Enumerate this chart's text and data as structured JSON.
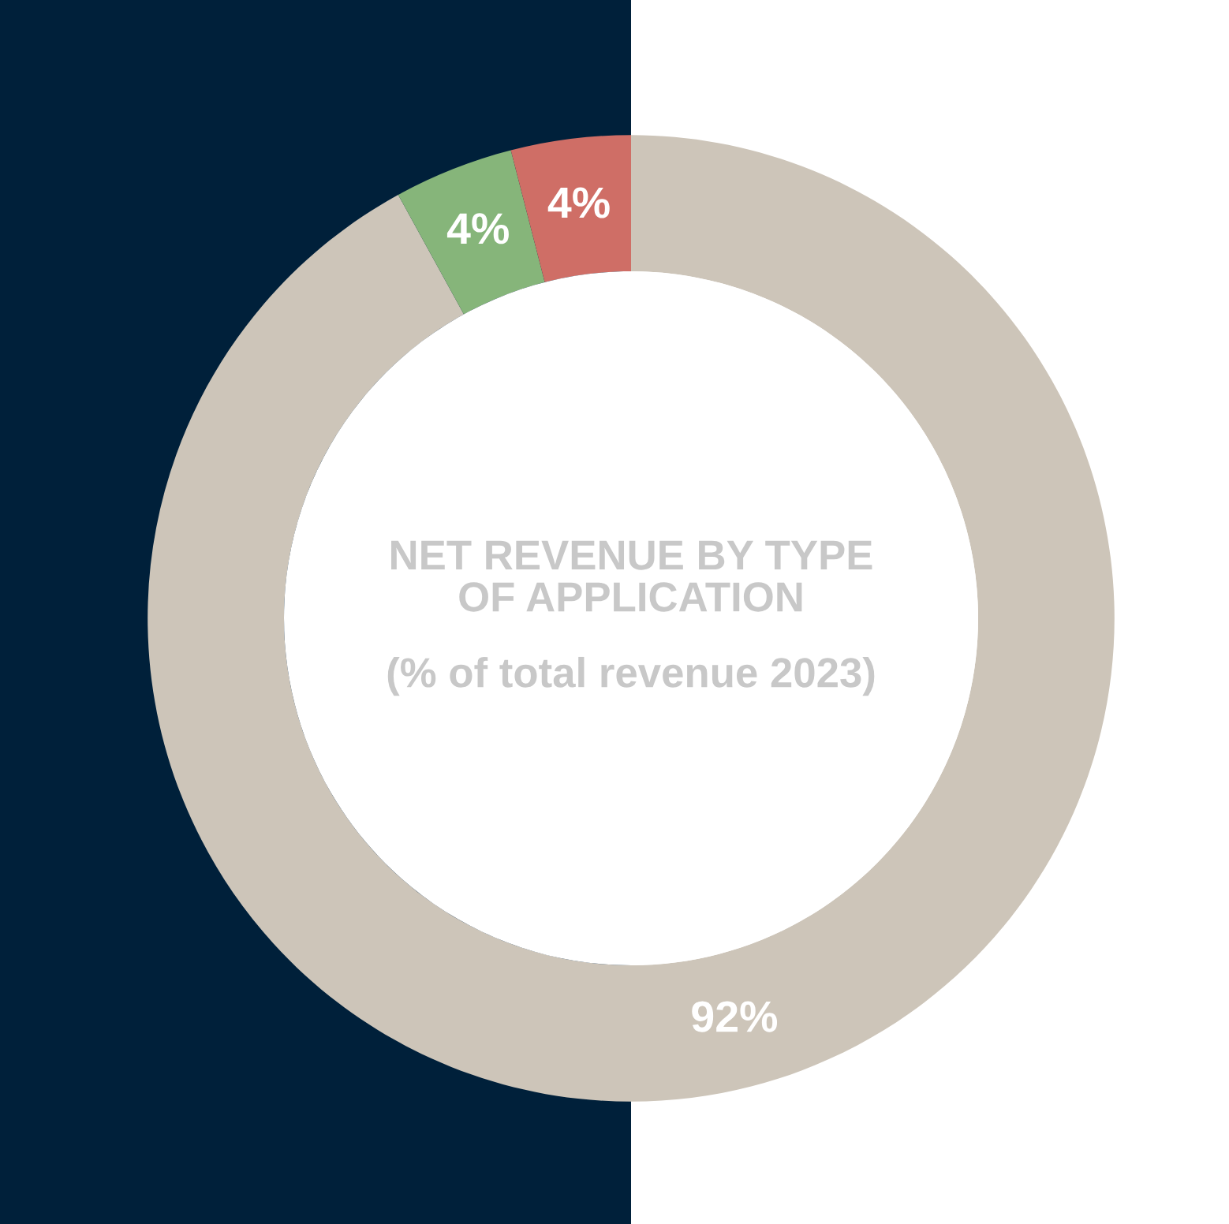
{
  "chart_data": {
    "type": "donut",
    "title": "NET REVENUE BY TYPE\nOF APPLICATION",
    "subtitle": "(% of total revenue 2023)",
    "categories": [
      null,
      null,
      null
    ],
    "values": [
      92,
      4,
      4
    ],
    "colors": [
      "#cdc5b9",
      "#86b57a",
      "#cf6e66"
    ],
    "value_labels": [
      "92%",
      "4%",
      "4%"
    ]
  }
}
